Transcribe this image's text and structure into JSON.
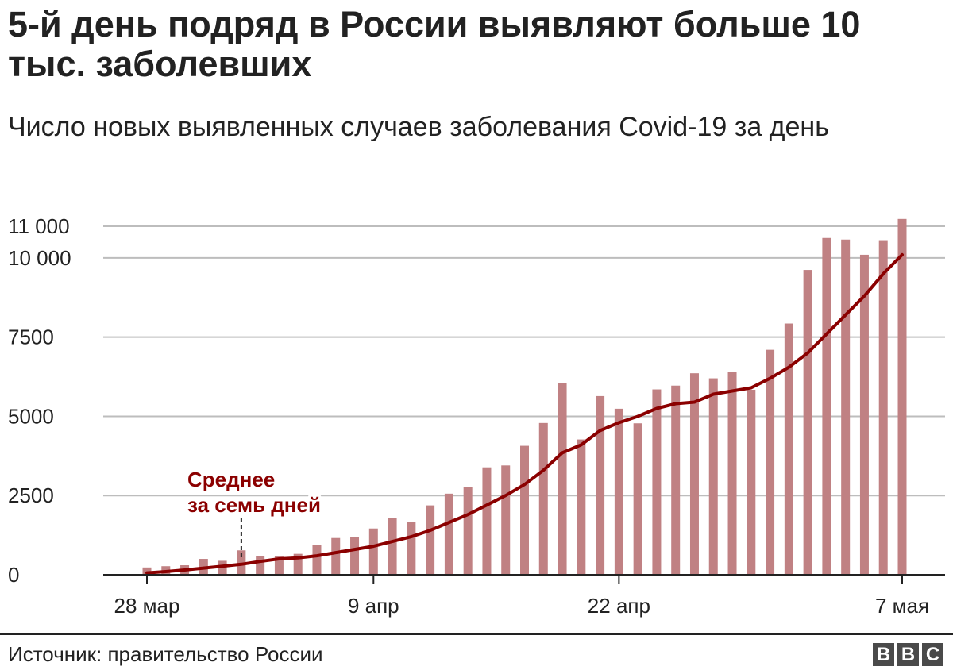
{
  "header": {
    "title": "5-й день подряд в России выявляют больше 10 тыс. заболевших",
    "subtitle": "Число новых выявленных случаев заболевания Covid-19 за день"
  },
  "footer": {
    "source": "Источник: правительство России",
    "logo_letters": [
      "B",
      "B",
      "C"
    ]
  },
  "colors": {
    "bar": "#c08183",
    "line": "#8b0000",
    "grid": "#bdbdbd",
    "axis": "#222222"
  },
  "chart_data": {
    "type": "bar",
    "title": "5-й день подряд в России выявляют больше 10 тыс. заболевших",
    "subtitle": "Число новых выявленных случаев заболевания Covid-19 за день",
    "xlabel": "",
    "ylabel": "",
    "ylim": [
      0,
      11000
    ],
    "yticks": [
      {
        "value": 0,
        "label": "0"
      },
      {
        "value": 2500,
        "label": "2500"
      },
      {
        "value": 5000,
        "label": "5000"
      },
      {
        "value": 7500,
        "label": "7500"
      },
      {
        "value": 10000,
        "label": "10 000"
      },
      {
        "value": 11000,
        "label": "11 000"
      }
    ],
    "xticks": [
      {
        "index": 0,
        "label": "28 мар"
      },
      {
        "index": 12,
        "label": "9 апр"
      },
      {
        "index": 25,
        "label": "22 апр"
      },
      {
        "index": 40,
        "label": "7 мая"
      }
    ],
    "grid": true,
    "categories": [
      "28 мар",
      "29 мар",
      "30 мар",
      "31 мар",
      "1 апр",
      "2 апр",
      "3 апр",
      "4 апр",
      "5 апр",
      "6 апр",
      "7 апр",
      "8 апр",
      "9 апр",
      "10 апр",
      "11 апр",
      "12 апр",
      "13 апр",
      "14 апр",
      "15 апр",
      "16 апр",
      "17 апр",
      "18 апр",
      "19 апр",
      "20 апр",
      "21 апр",
      "22 апр",
      "23 апр",
      "24 апр",
      "25 апр",
      "26 апр",
      "27 апр",
      "28 апр",
      "29 апр",
      "30 апр",
      "1 мая",
      "2 мая",
      "3 мая",
      "4 мая",
      "5 мая",
      "6 мая",
      "7 мая"
    ],
    "series": [
      {
        "name": "",
        "type": "bar",
        "values": [
          230,
          270,
          300,
          500,
          440,
          770,
          600,
          580,
          660,
          950,
          1160,
          1180,
          1460,
          1790,
          1670,
          2190,
          2560,
          2780,
          3390,
          3450,
          4070,
          4790,
          6060,
          4270,
          5640,
          5240,
          4780,
          5850,
          5970,
          6360,
          6200,
          6410,
          5840,
          7100,
          7930,
          9620,
          10630,
          10580,
          10100,
          10560,
          11230
        ]
      },
      {
        "name": "Среднее за семь дней",
        "type": "line",
        "values": [
          60,
          100,
          150,
          210,
          270,
          330,
          420,
          500,
          530,
          600,
          700,
          800,
          900,
          1050,
          1200,
          1400,
          1650,
          1900,
          2200,
          2500,
          2850,
          3300,
          3850,
          4100,
          4550,
          4800,
          5000,
          5250,
          5400,
          5450,
          5700,
          5800,
          5900,
          6200,
          6550,
          7000,
          7600,
          8200,
          8800,
          9500,
          10100
        ]
      }
    ],
    "annotation": {
      "lines": [
        "Среднее",
        "за семь дней"
      ],
      "index": 5
    }
  }
}
